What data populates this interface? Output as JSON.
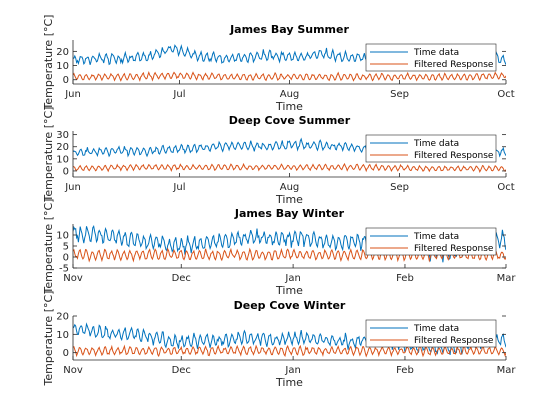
{
  "chart_data": [
    {
      "type": "line",
      "title": "James Bay Summer",
      "xlabel": "Time",
      "ylabel": "Temperature [°C]",
      "xlim": [
        "2000-06-01",
        "2000-10-01"
      ],
      "xticks": [
        {
          "date": "2000-06-01",
          "label": "Jun"
        },
        {
          "date": "2000-07-01",
          "label": "Jul"
        },
        {
          "date": "2000-08-01",
          "label": "Aug"
        },
        {
          "date": "2000-09-01",
          "label": "Sep"
        },
        {
          "date": "2000-10-01",
          "label": "Oct"
        }
      ],
      "ylim": [
        -3,
        28
      ],
      "yticks": [
        0,
        10,
        20
      ],
      "legend": {
        "position": "top-right",
        "entries": [
          "Time data",
          "Filtered Response"
        ]
      },
      "series": [
        {
          "name": "Time data",
          "color": "#0072BD",
          "x": [
            "2000-06-01",
            "2000-06-08",
            "2000-06-15",
            "2000-06-22",
            "2000-06-29",
            "2000-07-06",
            "2000-07-13",
            "2000-07-20",
            "2000-07-27",
            "2000-08-03",
            "2000-08-10",
            "2000-08-17",
            "2000-08-24",
            "2000-08-31",
            "2000-09-07",
            "2000-09-14",
            "2000-09-21",
            "2000-09-28",
            "2000-10-01"
          ],
          "y": [
            14,
            15,
            15,
            16,
            22,
            17,
            15,
            16,
            17,
            16,
            18,
            16,
            15,
            16,
            17,
            14,
            18,
            16,
            14
          ]
        },
        {
          "name": "Filtered Response",
          "color": "#D95319",
          "x": [
            "2000-06-01",
            "2000-06-15",
            "2000-06-29",
            "2000-07-13",
            "2000-07-27",
            "2000-08-10",
            "2000-08-24",
            "2000-09-07",
            "2000-09-21",
            "2000-10-01"
          ],
          "y": [
            2,
            2,
            3,
            2,
            2,
            2,
            2,
            2,
            2,
            3
          ]
        }
      ]
    },
    {
      "type": "line",
      "title": "Deep Cove Summer",
      "xlabel": "Time",
      "ylabel": "Temperature [°C]",
      "xlim": [
        "2000-06-01",
        "2000-10-01"
      ],
      "xticks": [
        {
          "date": "2000-06-01",
          "label": "Jun"
        },
        {
          "date": "2000-07-01",
          "label": "Jul"
        },
        {
          "date": "2000-08-01",
          "label": "Aug"
        },
        {
          "date": "2000-09-01",
          "label": "Sep"
        },
        {
          "date": "2000-10-01",
          "label": "Oct"
        }
      ],
      "ylim": [
        -5,
        33
      ],
      "yticks": [
        0,
        10,
        20,
        30
      ],
      "legend": {
        "position": "top-right",
        "entries": [
          "Time data",
          "Filtered Response"
        ]
      },
      "series": [
        {
          "name": "Time data",
          "color": "#0072BD",
          "x": [
            "2000-06-01",
            "2000-06-08",
            "2000-06-15",
            "2000-06-22",
            "2000-06-29",
            "2000-07-06",
            "2000-07-13",
            "2000-07-20",
            "2000-07-27",
            "2000-08-03",
            "2000-08-10",
            "2000-08-17",
            "2000-08-24",
            "2000-08-31",
            "2000-09-07",
            "2000-09-14",
            "2000-09-21",
            "2000-09-28",
            "2000-10-01"
          ],
          "y": [
            15,
            16,
            17,
            16,
            18,
            19,
            20,
            21,
            20,
            22,
            21,
            20,
            18,
            17,
            17,
            16,
            16,
            16,
            15
          ]
        },
        {
          "name": "Filtered Response",
          "color": "#D95319",
          "x": [
            "2000-06-01",
            "2000-06-15",
            "2000-06-29",
            "2000-07-13",
            "2000-07-27",
            "2000-08-10",
            "2000-08-24",
            "2000-09-07",
            "2000-09-21",
            "2000-10-01"
          ],
          "y": [
            2,
            3,
            3,
            3,
            3,
            3,
            3,
            2,
            2,
            2
          ]
        }
      ]
    },
    {
      "type": "line",
      "title": "James Bay Winter",
      "xlabel": "Time",
      "ylabel": "Temperature [°C]",
      "xlim": [
        "2000-11-01",
        "2001-03-01"
      ],
      "xticks": [
        {
          "date": "2000-11-01",
          "label": "Nov"
        },
        {
          "date": "2000-12-01",
          "label": "Dec"
        },
        {
          "date": "2001-01-01",
          "label": "Jan"
        },
        {
          "date": "2001-02-01",
          "label": "Feb"
        },
        {
          "date": "2001-03-01",
          "label": "Mar"
        }
      ],
      "ylim": [
        -5,
        15
      ],
      "yticks": [
        -5,
        0,
        5,
        10
      ],
      "legend": {
        "position": "top-right",
        "entries": [
          "Time data",
          "Filtered Response"
        ]
      },
      "series": [
        {
          "name": "Time data",
          "color": "#0072BD",
          "x": [
            "2000-11-01",
            "2000-11-08",
            "2000-11-15",
            "2000-11-22",
            "2000-11-29",
            "2000-12-06",
            "2000-12-13",
            "2000-12-20",
            "2000-12-27",
            "2001-01-03",
            "2001-01-10",
            "2001-01-17",
            "2001-01-24",
            "2001-01-31",
            "2001-02-07",
            "2001-02-14",
            "2001-02-21",
            "2001-02-28",
            "2001-03-01"
          ],
          "y": [
            11,
            10,
            9,
            7,
            5,
            6,
            7,
            9,
            8,
            9,
            7,
            7,
            8,
            6,
            3,
            2,
            6,
            8,
            7
          ]
        },
        {
          "name": "Filtered Response",
          "color": "#D95319",
          "x": [
            "2000-11-01",
            "2000-11-15",
            "2000-11-29",
            "2000-12-13",
            "2000-12-27",
            "2001-01-10",
            "2001-01-24",
            "2001-02-07",
            "2001-02-21",
            "2001-03-01"
          ],
          "y": [
            1,
            1,
            1,
            1,
            1,
            1,
            1,
            1,
            1,
            1
          ]
        }
      ]
    },
    {
      "type": "line",
      "title": "Deep Cove Winter",
      "xlabel": "Time",
      "ylabel": "Temperature [°C]",
      "xlim": [
        "2000-11-01",
        "2001-03-01"
      ],
      "xticks": [
        {
          "date": "2000-11-01",
          "label": "Nov"
        },
        {
          "date": "2000-12-01",
          "label": "Dec"
        },
        {
          "date": "2001-01-01",
          "label": "Jan"
        },
        {
          "date": "2001-02-01",
          "label": "Feb"
        },
        {
          "date": "2001-03-01",
          "label": "Mar"
        }
      ],
      "ylim": [
        -4,
        20
      ],
      "yticks": [
        0,
        10,
        20
      ],
      "legend": {
        "position": "top-right",
        "entries": [
          "Time data",
          "Filtered Response"
        ]
      },
      "series": [
        {
          "name": "Time data",
          "color": "#0072BD",
          "x": [
            "2000-11-01",
            "2000-11-08",
            "2000-11-15",
            "2000-11-22",
            "2000-11-29",
            "2000-12-06",
            "2000-12-13",
            "2000-12-20",
            "2000-12-27",
            "2001-01-03",
            "2001-01-10",
            "2001-01-17",
            "2001-01-24",
            "2001-01-31",
            "2001-02-07",
            "2001-02-14",
            "2001-02-21",
            "2001-02-28",
            "2001-03-01"
          ],
          "y": [
            13,
            11,
            10,
            9,
            6,
            7,
            7,
            8,
            7,
            8,
            7,
            6,
            7,
            5,
            3,
            2,
            6,
            7,
            6
          ]
        },
        {
          "name": "Filtered Response",
          "color": "#D95319",
          "x": [
            "2000-11-01",
            "2000-11-15",
            "2000-11-29",
            "2000-12-13",
            "2000-12-27",
            "2001-01-10",
            "2001-01-24",
            "2001-02-07",
            "2001-02-21",
            "2001-03-01"
          ],
          "y": [
            1,
            1,
            1,
            1,
            1,
            1,
            1,
            1,
            1,
            1
          ]
        }
      ]
    }
  ]
}
